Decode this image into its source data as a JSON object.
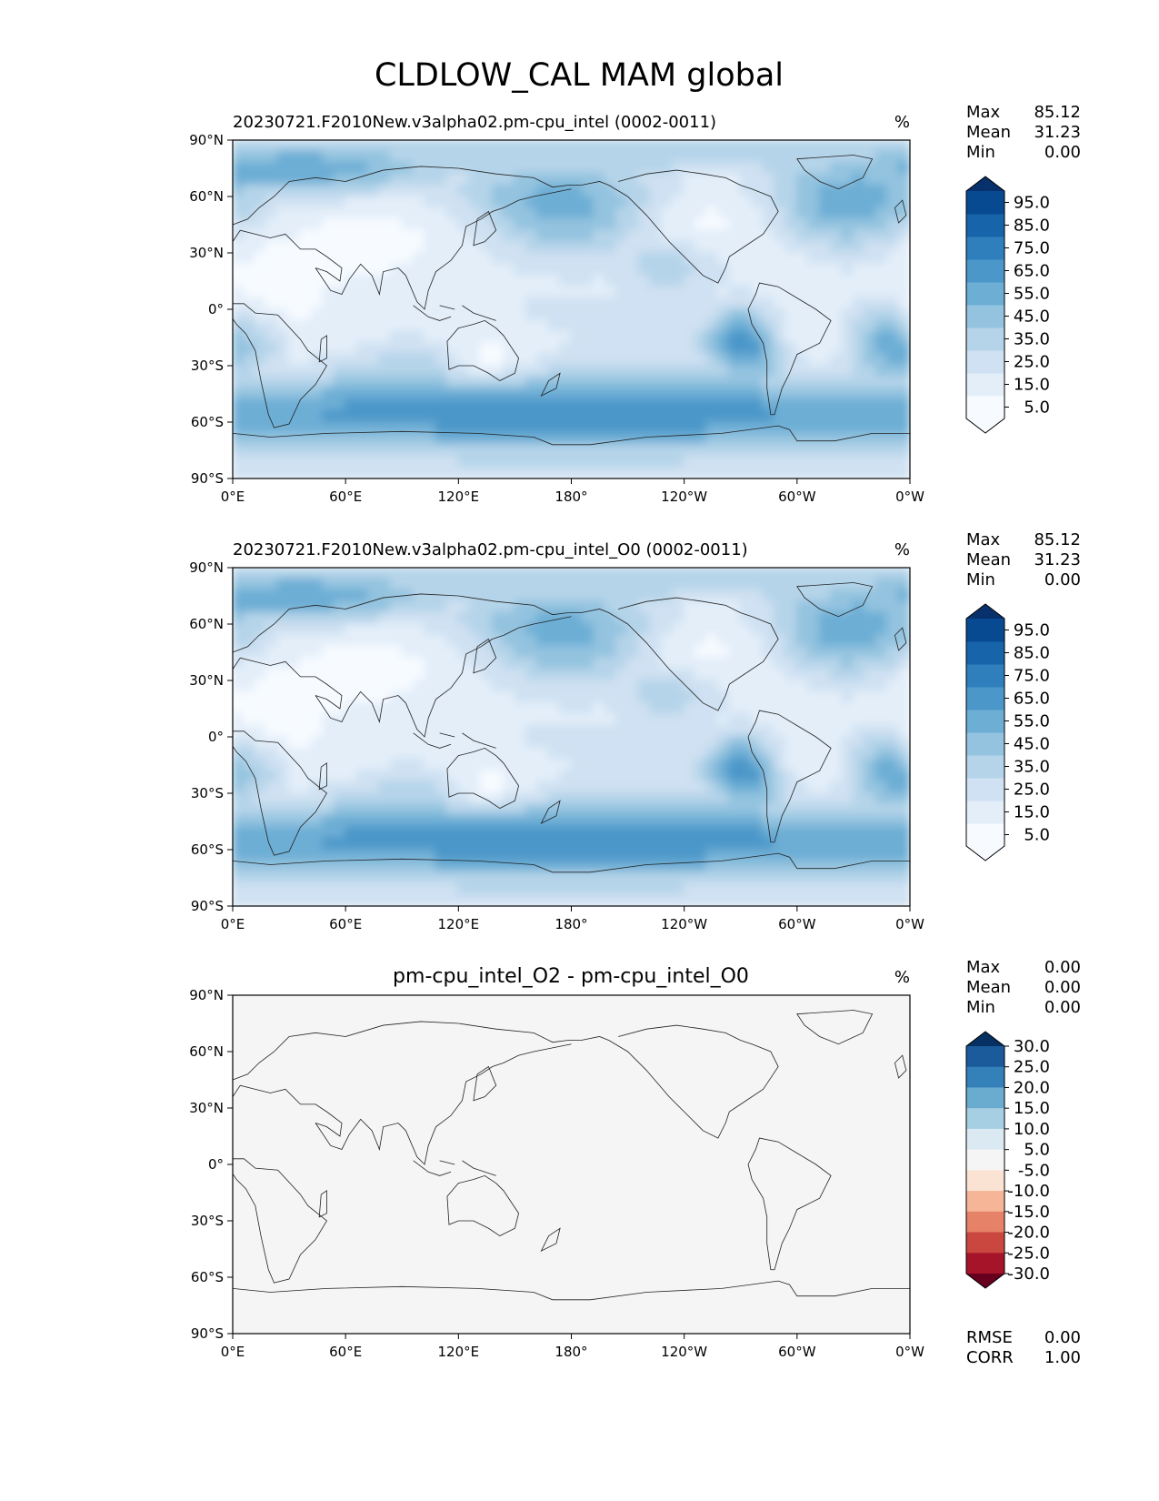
{
  "figure_title": "CLDLOW_CAL MAM global",
  "chart_data": [
    {
      "type": "heatmap",
      "title": "20230721.F2010New.v3alpha02.pm-cpu_intel (0002-0011)",
      "units": "%",
      "stats": [
        {
          "label": "Max",
          "value": "85.12"
        },
        {
          "label": "Mean",
          "value": "31.23"
        },
        {
          "label": "Min",
          "value": "0.00"
        }
      ],
      "x_ticks": [
        "0°E",
        "60°E",
        "120°E",
        "180°",
        "120°W",
        "60°W",
        "0°W"
      ],
      "y_ticks": [
        "90°N",
        "60°N",
        "30°N",
        "0°",
        "30°S",
        "60°S",
        "90°S"
      ],
      "xlim": [
        0,
        360
      ],
      "ylim": [
        -90,
        90
      ],
      "colorbar": {
        "levels": [
          0,
          5,
          10,
          15,
          20,
          25,
          30,
          35,
          40,
          45,
          50,
          55,
          60,
          65,
          70,
          75,
          80,
          85,
          90,
          95,
          100
        ],
        "labels": [
          "95.0",
          "85.0",
          "75.0",
          "65.0",
          "55.0",
          "45.0",
          "35.0",
          "25.0",
          "15.0",
          "5.0"
        ],
        "extend": "both"
      }
    },
    {
      "type": "heatmap",
      "title": "20230721.F2010New.v3alpha02.pm-cpu_intel_O0 (0002-0011)",
      "units": "%",
      "stats": [
        {
          "label": "Max",
          "value": "85.12"
        },
        {
          "label": "Mean",
          "value": "31.23"
        },
        {
          "label": "Min",
          "value": "0.00"
        }
      ],
      "x_ticks": [
        "0°E",
        "60°E",
        "120°E",
        "180°",
        "120°W",
        "60°W",
        "0°W"
      ],
      "y_ticks": [
        "90°N",
        "60°N",
        "30°N",
        "0°",
        "30°S",
        "60°S",
        "90°S"
      ],
      "xlim": [
        0,
        360
      ],
      "ylim": [
        -90,
        90
      ],
      "colorbar": {
        "levels": [
          0,
          5,
          10,
          15,
          20,
          25,
          30,
          35,
          40,
          45,
          50,
          55,
          60,
          65,
          70,
          75,
          80,
          85,
          90,
          95,
          100
        ],
        "labels": [
          "95.0",
          "85.0",
          "75.0",
          "65.0",
          "55.0",
          "45.0",
          "35.0",
          "25.0",
          "15.0",
          "5.0"
        ],
        "extend": "both"
      }
    },
    {
      "type": "heatmap",
      "title": "pm-cpu_intel_O2 - pm-cpu_intel_O0",
      "units": "%",
      "stats": [
        {
          "label": "Max",
          "value": "0.00"
        },
        {
          "label": "Mean",
          "value": "0.00"
        },
        {
          "label": "Min",
          "value": "0.00"
        }
      ],
      "bottom_stats": [
        {
          "label": "RMSE",
          "value": "0.00"
        },
        {
          "label": "CORR",
          "value": "1.00"
        }
      ],
      "x_ticks": [
        "0°E",
        "60°E",
        "120°E",
        "180°",
        "120°W",
        "60°W",
        "0°W"
      ],
      "y_ticks": [
        "90°N",
        "60°N",
        "30°N",
        "0°",
        "30°S",
        "60°S",
        "90°S"
      ],
      "xlim": [
        0,
        360
      ],
      "ylim": [
        -90,
        90
      ],
      "colorbar": {
        "levels": [
          -35,
          -30,
          -25,
          -20,
          -15,
          -10,
          -5,
          5,
          10,
          15,
          20,
          25,
          30,
          35
        ],
        "labels": [
          "30.0",
          "25.0",
          "20.0",
          "15.0",
          "10.0",
          "5.0",
          "-5.0",
          "-10.0",
          "-15.0",
          "-20.0",
          "-25.0",
          "-30.0"
        ],
        "extend": "both"
      }
    }
  ],
  "colors": {
    "blues": [
      "#f7fbff",
      "#e3eef9",
      "#cfe1f2",
      "#b5d4e9",
      "#93c3df",
      "#6daed5",
      "#4b97c9",
      "#2f7fbc",
      "#1764ab",
      "#084a91",
      "#08306b"
    ],
    "diverging": [
      "#67001f",
      "#a51429",
      "#c9473e",
      "#e58267",
      "#f6b596",
      "#fbe3d4",
      "#f5f5f5",
      "#dbeaf2",
      "#a7cfe4",
      "#6aacd0",
      "#3480b9",
      "#1b5a9b",
      "#053061"
    ],
    "zero_field": "#f5f5f5"
  }
}
